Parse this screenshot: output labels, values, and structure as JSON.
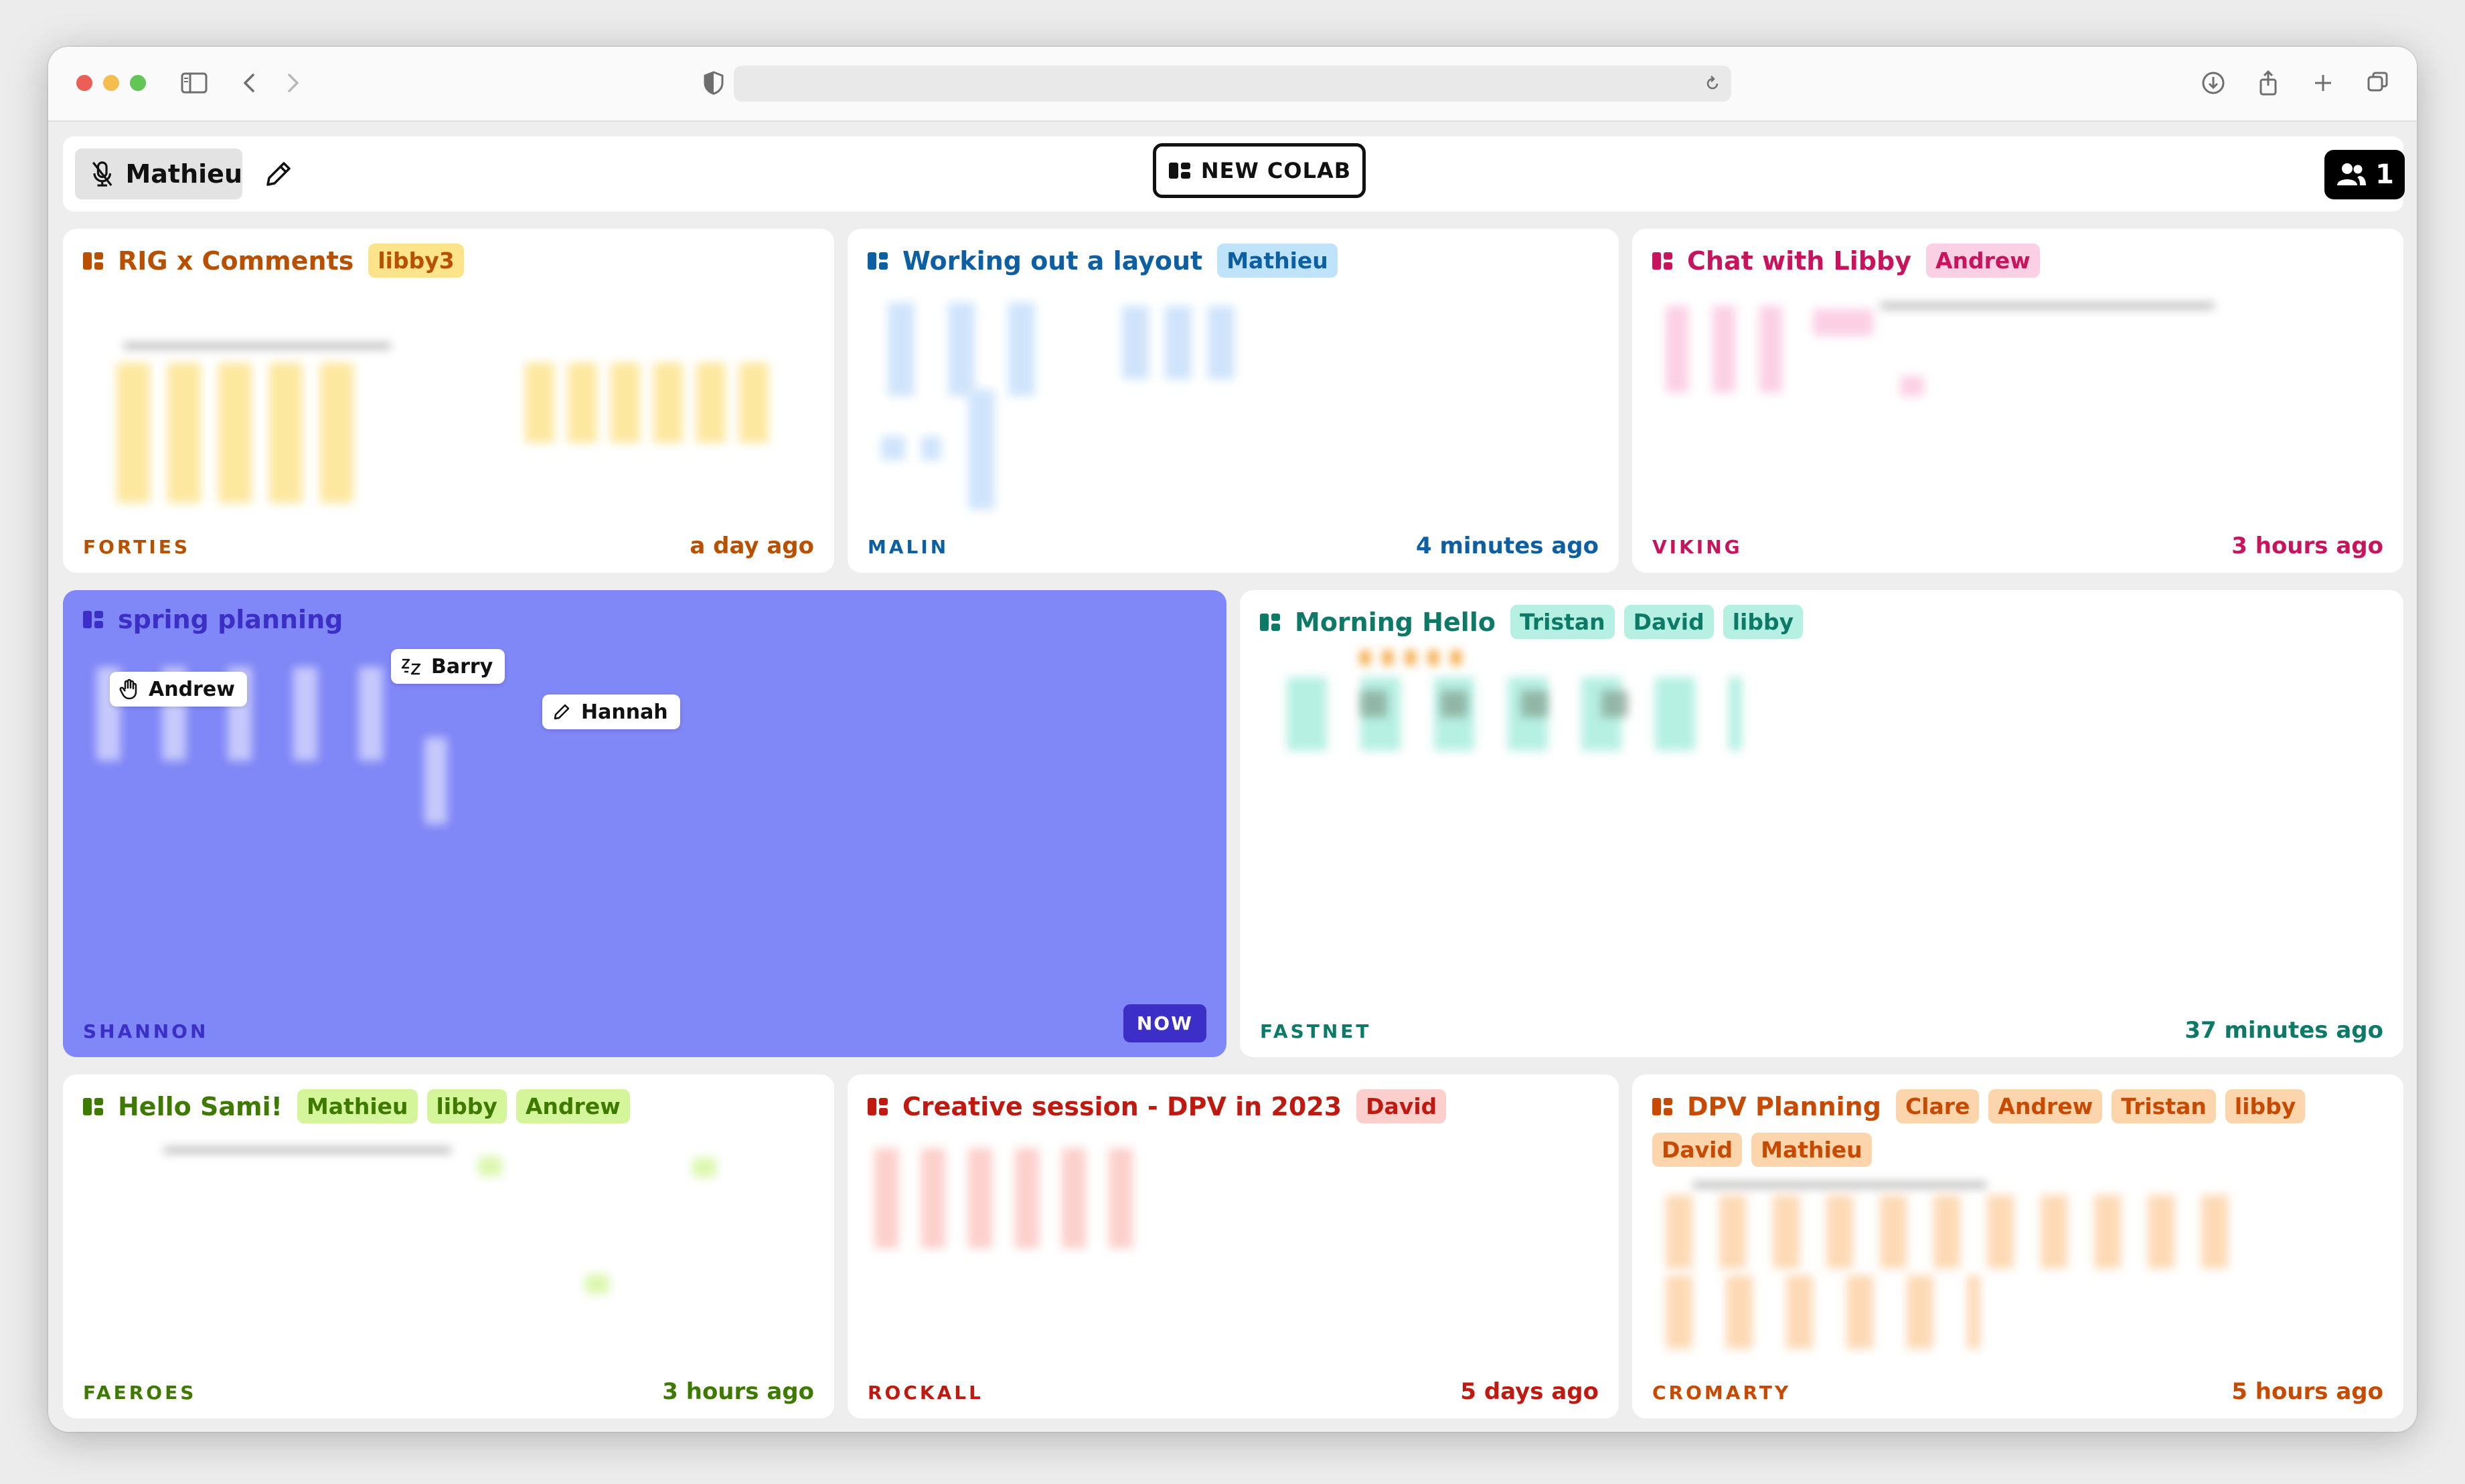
{
  "app": {
    "user_name": "Mathieu",
    "new_button_label": "NEW COLAB",
    "online_count": "1"
  },
  "colors": {
    "orange": "#b85000",
    "blue": "#0c5fa3",
    "pink": "#c8145c",
    "purple": "#8087f6",
    "teal": "#0d7a68",
    "green": "#3f7a00",
    "red": "#c01a10",
    "dpv": "#c84a00"
  },
  "cards": [
    {
      "title": "RIG x Comments",
      "tags": [
        "libby3"
      ],
      "code": "FORTIES",
      "time": "a day ago"
    },
    {
      "title": "Working out a layout",
      "tags": [
        "Mathieu"
      ],
      "code": "MALIN",
      "time": "4 minutes ago"
    },
    {
      "title": "Chat with Libby",
      "tags": [
        "Andrew"
      ],
      "code": "VIKING",
      "time": "3 hours ago"
    },
    {
      "title": "spring planning",
      "tags": [],
      "code": "SHANNON",
      "time": "NOW",
      "cursors": [
        "Andrew",
        "Barry",
        "Hannah"
      ]
    },
    {
      "title": "Morning Hello",
      "tags": [
        "Tristan",
        "David",
        "libby"
      ],
      "code": "FASTNET",
      "time": "37 minutes ago"
    },
    {
      "title": "Hello Sami!",
      "tags": [
        "Mathieu",
        "libby",
        "Andrew"
      ],
      "code": "FAEROES",
      "time": "3 hours ago"
    },
    {
      "title": "Creative session - DPV in 2023",
      "tags": [
        "David"
      ],
      "code": "ROCKALL",
      "time": "5 days ago"
    },
    {
      "title": "DPV Planning",
      "tags": [
        "Clare",
        "Andrew",
        "Tristan",
        "libby",
        "David",
        "Mathieu"
      ],
      "code": "CROMARTY",
      "time": "5 hours ago"
    }
  ]
}
